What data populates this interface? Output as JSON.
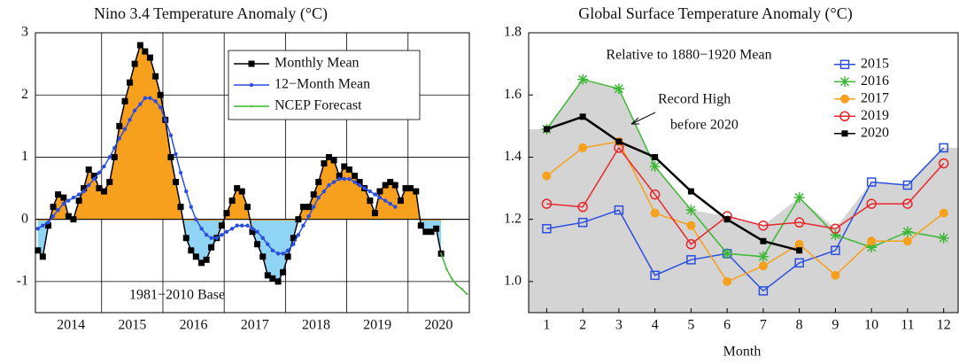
{
  "chart_data": [
    {
      "type": "line",
      "title": "Nino 3.4 Temperature Anomaly (°C)",
      "annotation": "1981−2010 Base",
      "xlim": [
        2013.92,
        2021.0
      ],
      "xticks": [
        {
          "value": 2014.5,
          "label": "2014"
        },
        {
          "value": 2015.5,
          "label": "2015"
        },
        {
          "value": 2016.5,
          "label": "2016"
        },
        {
          "value": 2017.5,
          "label": "2017"
        },
        {
          "value": 2018.5,
          "label": "2018"
        },
        {
          "value": 2019.5,
          "label": "2019"
        },
        {
          "value": 2020.5,
          "label": "2020"
        }
      ],
      "xgrid": [
        2015,
        2016,
        2017,
        2018,
        2019,
        2020
      ],
      "ylim": [
        -1.5,
        3
      ],
      "yticks": [
        -1,
        0,
        1,
        2,
        3
      ],
      "grid": true,
      "legend": "upper right",
      "fill_above": "#f7a01e",
      "fill_below": "#8fd4f5",
      "x": [
        2013.96,
        2014.04,
        2014.13,
        2014.21,
        2014.29,
        2014.38,
        2014.46,
        2014.54,
        2014.63,
        2014.71,
        2014.79,
        2014.88,
        2014.96,
        2015.04,
        2015.13,
        2015.21,
        2015.29,
        2015.38,
        2015.46,
        2015.54,
        2015.63,
        2015.71,
        2015.79,
        2015.88,
        2015.96,
        2016.04,
        2016.13,
        2016.21,
        2016.29,
        2016.38,
        2016.46,
        2016.54,
        2016.63,
        2016.71,
        2016.79,
        2016.88,
        2016.96,
        2017.04,
        2017.13,
        2017.21,
        2017.29,
        2017.38,
        2017.46,
        2017.54,
        2017.63,
        2017.71,
        2017.79,
        2017.88,
        2017.96,
        2018.04,
        2018.13,
        2018.21,
        2018.29,
        2018.38,
        2018.46,
        2018.54,
        2018.63,
        2018.71,
        2018.79,
        2018.88,
        2018.96,
        2019.04,
        2019.13,
        2019.21,
        2019.29,
        2019.38,
        2019.46,
        2019.54,
        2019.63,
        2019.71,
        2019.79,
        2019.88,
        2019.96,
        2020.04,
        2020.13,
        2020.21,
        2020.29,
        2020.38,
        2020.46,
        2020.54
      ],
      "series": [
        {
          "name": "Monthly Mean",
          "color": "#000000",
          "marker": "square",
          "fill": true,
          "values": [
            -0.5,
            -0.6,
            -0.1,
            0.2,
            0.4,
            0.35,
            0.05,
            0.0,
            0.3,
            0.5,
            0.8,
            0.7,
            0.5,
            0.45,
            0.6,
            1.0,
            1.5,
            1.9,
            2.2,
            2.5,
            2.8,
            2.7,
            2.6,
            2.3,
            2.0,
            1.6,
            1.0,
            0.6,
            0.2,
            -0.3,
            -0.5,
            -0.6,
            -0.7,
            -0.65,
            -0.45,
            -0.3,
            -0.1,
            0.1,
            0.3,
            0.5,
            0.45,
            0.2,
            -0.2,
            -0.4,
            -0.6,
            -0.9,
            -0.95,
            -1.0,
            -0.85,
            -0.6,
            -0.3,
            0.0,
            0.2,
            0.2,
            0.4,
            0.6,
            0.9,
            1.0,
            0.95,
            0.7,
            0.85,
            0.8,
            0.7,
            0.6,
            0.5,
            0.3,
            0.1,
            0.45,
            0.55,
            0.6,
            0.55,
            0.3,
            0.5,
            0.5,
            0.45,
            -0.1,
            -0.2,
            -0.2,
            -0.15,
            -0.55
          ]
        },
        {
          "name": "12−Month Mean",
          "color": "#2a4fe0",
          "marker": "dot",
          "values": [
            -0.15,
            -0.1,
            -0.05,
            0.05,
            0.15,
            0.25,
            0.3,
            0.35,
            0.4,
            0.45,
            0.55,
            0.65,
            0.75,
            0.85,
            1.0,
            1.15,
            1.3,
            1.45,
            1.6,
            1.75,
            1.85,
            1.95,
            1.95,
            1.9,
            1.8,
            1.6,
            1.35,
            1.05,
            0.75,
            0.45,
            0.2,
            0.0,
            -0.15,
            -0.25,
            -0.3,
            -0.3,
            -0.25,
            -0.2,
            -0.15,
            -0.1,
            -0.1,
            -0.1,
            -0.15,
            -0.2,
            -0.3,
            -0.4,
            -0.5,
            -0.55,
            -0.55,
            -0.5,
            -0.4,
            -0.25,
            -0.1,
            0.05,
            0.2,
            0.35,
            0.45,
            0.55,
            0.6,
            0.65,
            0.65,
            0.65,
            0.6,
            0.55,
            0.5,
            0.45,
            0.4,
            0.35,
            0.3,
            0.25,
            0.2,
            null,
            null,
            null,
            null,
            null,
            null,
            null,
            null,
            null
          ]
        },
        {
          "name": "NCEP Forecast",
          "color": "#3cb834",
          "marker": "tiny",
          "x": [
            2020.54,
            2020.63,
            2020.71,
            2020.79,
            2020.88,
            2020.96
          ],
          "values": [
            -0.55,
            -0.8,
            -0.95,
            -1.05,
            -1.12,
            -1.2
          ]
        }
      ]
    },
    {
      "type": "line",
      "title": "Global Surface Temperature Anomaly (°C)",
      "subtitle": "Relative to 1880−1920 Mean",
      "xlabel": "Month",
      "xlim": [
        0.5,
        12.4
      ],
      "xticks": [
        1,
        2,
        3,
        4,
        5,
        6,
        7,
        8,
        9,
        10,
        11,
        12
      ],
      "ylim": [
        0.9,
        1.8
      ],
      "yticks": [
        {
          "value": 1,
          "label": "1.0"
        },
        1.2,
        1.4,
        1.6,
        1.8
      ],
      "grid": false,
      "legend": "upper right",
      "x": [
        1,
        2,
        3,
        4,
        5,
        6,
        7,
        8,
        9,
        10,
        11,
        12
      ],
      "shade": {
        "label_lines": [
          "Record High",
          "before 2020"
        ],
        "color": "#d4d4d4",
        "values": [
          1.49,
          1.65,
          1.62,
          1.37,
          1.23,
          1.21,
          1.18,
          1.27,
          1.17,
          1.32,
          1.31,
          1.43
        ]
      },
      "series": [
        {
          "name": "2015",
          "color": "#2a4fe0",
          "marker": "open-square",
          "values": [
            1.17,
            1.19,
            1.23,
            1.02,
            1.07,
            1.09,
            0.97,
            1.06,
            1.1,
            1.32,
            1.31,
            1.43
          ]
        },
        {
          "name": "2016",
          "color": "#3cb834",
          "marker": "star",
          "values": [
            1.49,
            1.65,
            1.62,
            1.37,
            1.23,
            1.09,
            1.08,
            1.27,
            1.15,
            1.11,
            1.16,
            1.14
          ]
        },
        {
          "name": "2017",
          "color": "#f7a01e",
          "marker": "circle",
          "values": [
            1.34,
            1.43,
            1.45,
            1.22,
            1.18,
            1.0,
            1.05,
            1.12,
            1.02,
            1.13,
            1.13,
            1.22
          ]
        },
        {
          "name": "2019",
          "color": "#e8262b",
          "marker": "open-circle",
          "values": [
            1.25,
            1.24,
            1.43,
            1.28,
            1.12,
            1.21,
            1.18,
            1.19,
            1.17,
            1.25,
            1.25,
            1.38
          ]
        },
        {
          "name": "2020",
          "color": "#000000",
          "marker": "square",
          "values": [
            1.49,
            1.53,
            1.45,
            1.4,
            1.29,
            1.2,
            1.13,
            1.1,
            null,
            null,
            null,
            null
          ]
        }
      ]
    }
  ]
}
